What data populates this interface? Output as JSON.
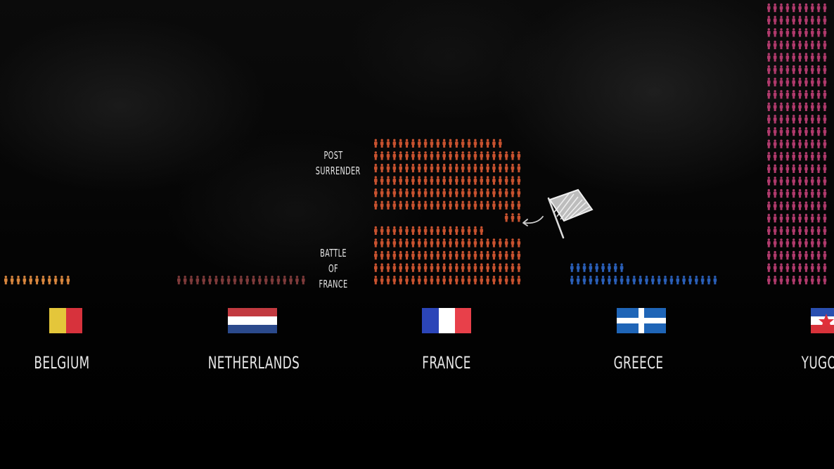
{
  "chart_data": {
    "type": "pictograph",
    "unit": "person icon",
    "categories": [
      "BELGIUM",
      "NETHERLANDS",
      "FRANCE",
      "GREECE",
      "YUGOSLAVIA"
    ],
    "series": [
      {
        "category": "BELGIUM",
        "color": "#d8863e",
        "segments": [
          {
            "label": "",
            "icons": 11
          }
        ]
      },
      {
        "category": "NETHERLANDS",
        "color": "#7e3a3a",
        "segments": [
          {
            "label": "",
            "icons": 21
          }
        ]
      },
      {
        "category": "FRANCE",
        "color": "#c8522f",
        "segments": [
          {
            "label": "BATTLE OF FRANCE",
            "icons": 114
          },
          {
            "label": "POST SURRENDER",
            "icons": 147
          }
        ]
      },
      {
        "category": "GREECE",
        "color": "#2a5fb8",
        "segments": [
          {
            "label": "",
            "icons": 33
          }
        ]
      },
      {
        "category": "YUGOSLAVIA",
        "color": "#b03a6c",
        "segments": [
          {
            "label": "",
            "icons": 264
          }
        ]
      }
    ],
    "annotations": [
      "POST SURRENDER",
      "BATTLE OF FRANCE"
    ]
  },
  "countries": {
    "belgium": "BELGIUM",
    "netherlands": "NETHERLANDS",
    "france": "FRANCE",
    "greece": "GREECE",
    "yugoslavia": "YUGOS"
  },
  "annotations": {
    "post_surrender": "POST SURRENDER",
    "battle_of_france": "BATTLE OF FRANCE"
  },
  "icons": {
    "person": "person-icon",
    "surrender_flag": "white-flag-icon",
    "arrow": "arrow-left-icon"
  }
}
